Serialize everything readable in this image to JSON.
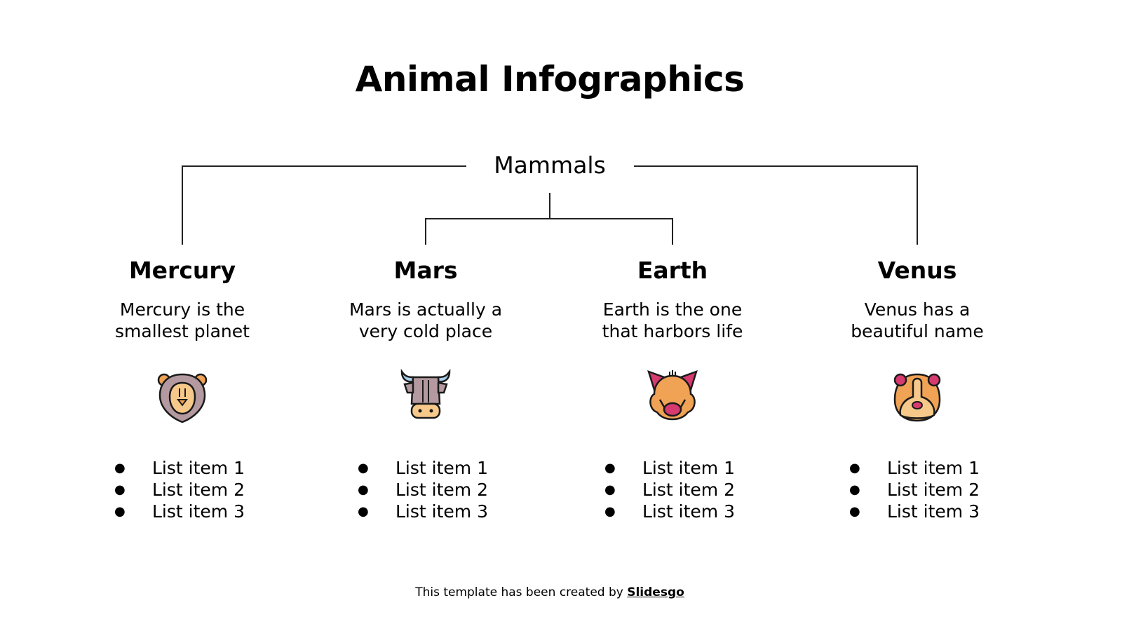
{
  "title": "Animal Infographics",
  "root": "Mammals",
  "columns": [
    {
      "heading": "Mercury",
      "desc1": "Mercury is the",
      "desc2": "smallest planet",
      "icon": "lion-icon",
      "items": [
        "List item 1",
        "List item 2",
        "List item 3"
      ]
    },
    {
      "heading": "Mars",
      "desc1": "Mars is actually a",
      "desc2": "very cold place",
      "icon": "bull-icon",
      "items": [
        "List item 1",
        "List item 2",
        "List item 3"
      ]
    },
    {
      "heading": "Earth",
      "desc1": "Earth is the one",
      "desc2": "that harbors life",
      "icon": "boar-icon",
      "items": [
        "List item 1",
        "List item 2",
        "List item 3"
      ]
    },
    {
      "heading": "Venus",
      "desc1": "Venus has a",
      "desc2": "beautiful name",
      "icon": "hamster-icon",
      "items": [
        "List item 1",
        "List item 2",
        "List item 3"
      ]
    }
  ],
  "footer": {
    "text": "This template has been created by ",
    "link": "Slidesgo"
  },
  "colors": {
    "mane": "#b49aa0",
    "face": "#f6c98a",
    "orange": "#f0a255",
    "pink": "#d63a6e",
    "horn": "#a9cde8",
    "outline": "#1a1a1a"
  }
}
